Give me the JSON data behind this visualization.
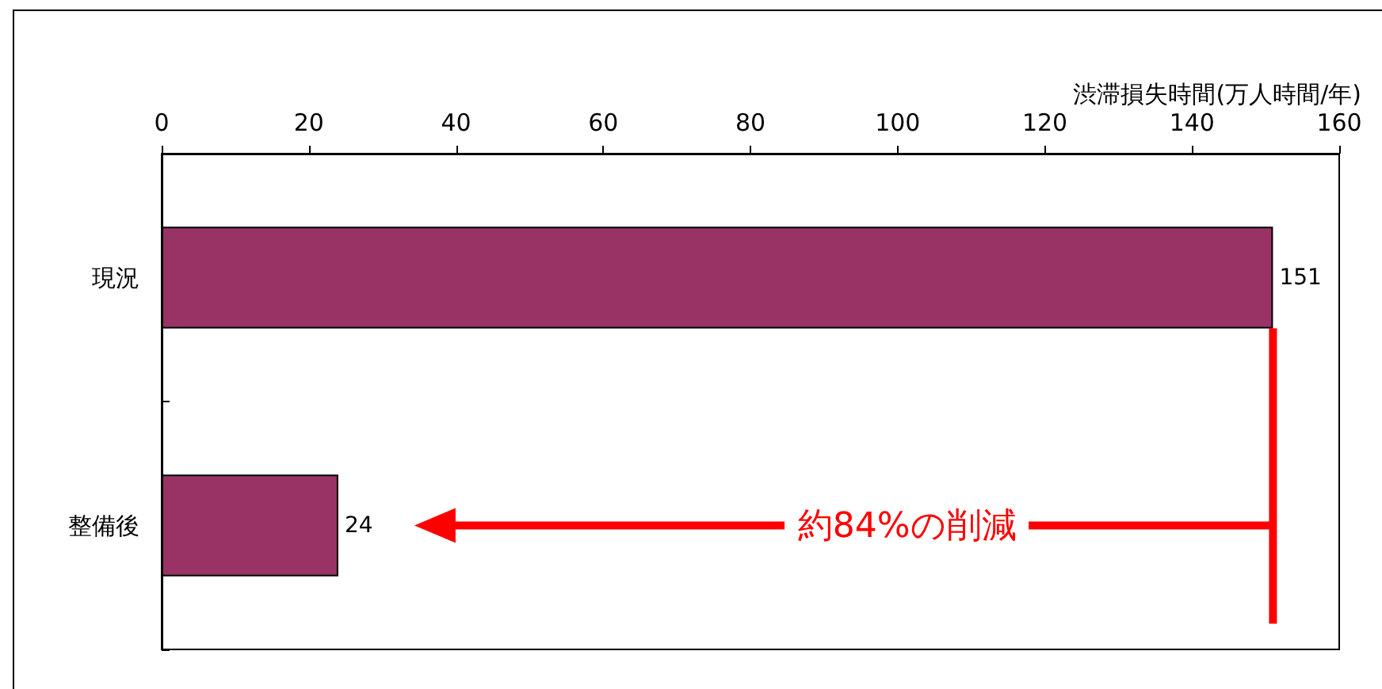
{
  "chart_data": {
    "type": "bar",
    "orientation": "horizontal",
    "xlabel": "渋滞損失時間(万人時間/年)",
    "categories": [
      "現況",
      "整備後"
    ],
    "values": [
      151,
      24
    ],
    "color": "#993366",
    "xlim": [
      0,
      160
    ],
    "xticks": [
      0,
      20,
      40,
      60,
      80,
      100,
      120,
      140,
      160
    ],
    "grid": false,
    "data_labels": true,
    "annotations": [
      "約84%の削減"
    ]
  }
}
